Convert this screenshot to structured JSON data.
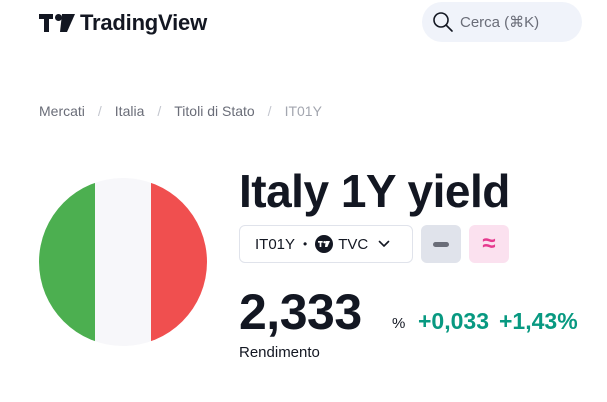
{
  "header": {
    "logo_text": "TradingView",
    "search_placeholder": "Cerca (⌘K)"
  },
  "breadcrumb": {
    "items": [
      "Mercati",
      "Italia",
      "Titoli di Stato"
    ],
    "current": "IT01Y",
    "separator": "/"
  },
  "flag": {
    "colors": [
      "#4caf50",
      "#f7f7fa",
      "#f04f4f"
    ]
  },
  "instrument": {
    "title": "Italy 1Y yield",
    "symbol": "IT01Y",
    "dot": "•",
    "exchange": "TVC",
    "approx_glyph": "≈"
  },
  "quote": {
    "price": "2,333",
    "unit": "%",
    "change": "+0,033",
    "change_pct": "+1,43%",
    "label": "Rendimento"
  },
  "colors": {
    "positive": "#089981",
    "accent_pink": "#e63a8f"
  }
}
